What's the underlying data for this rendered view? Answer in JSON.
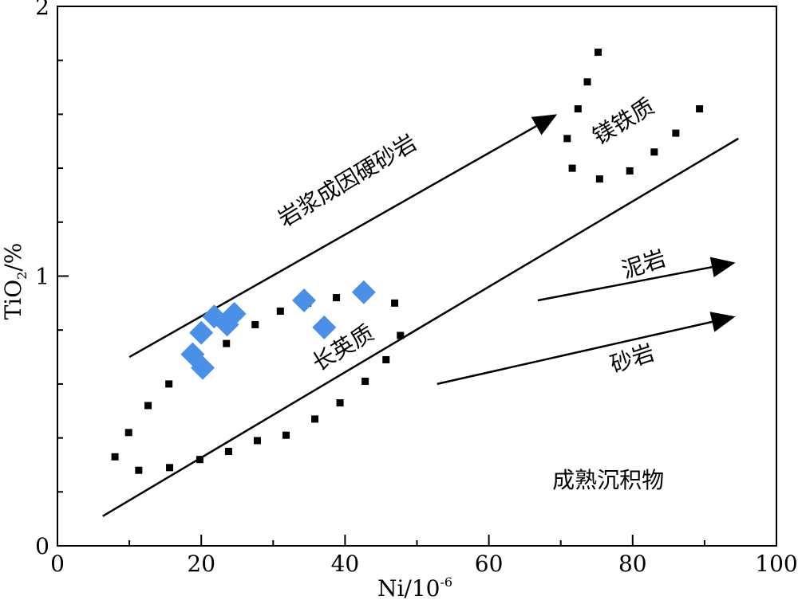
{
  "chart_data": {
    "type": "scatter",
    "title": "",
    "xlabel": "Ni/10",
    "xlabel_sup": "-6",
    "ylabel": "TiO",
    "ylabel_sub": "2",
    "ylabel_suffix": "/%",
    "xlim": [
      0,
      100
    ],
    "ylim": [
      0,
      2
    ],
    "x_ticks": [
      0,
      20,
      40,
      60,
      80,
      100
    ],
    "x_tick_labels": [
      "0",
      "20",
      "40",
      "60",
      "80",
      "100"
    ],
    "x_minor_ticks": [
      10,
      30,
      50,
      70,
      90
    ],
    "y_ticks": [
      0,
      1,
      2
    ],
    "y_tick_labels": [
      "0",
      "1",
      "2"
    ],
    "y_minor_ticks": [
      0.2,
      0.4,
      0.6,
      0.8,
      1.2,
      1.4,
      1.6,
      1.8
    ],
    "grid": false,
    "colors": {
      "points": "#4a90e8",
      "lines": "#000000"
    },
    "series": [
      {
        "values": [
          {
            "x": 18.8,
            "y": 0.71
          },
          {
            "x": 20.2,
            "y": 0.66
          },
          {
            "x": 20.0,
            "y": 0.79
          },
          {
            "x": 21.8,
            "y": 0.85
          },
          {
            "x": 23.6,
            "y": 0.82
          },
          {
            "x": 24.6,
            "y": 0.86
          },
          {
            "x": 34.3,
            "y": 0.91
          },
          {
            "x": 37.1,
            "y": 0.81
          },
          {
            "x": 42.6,
            "y": 0.94
          }
        ]
      }
    ],
    "lines": [
      {
        "x": [
          6.3,
          94.7
        ],
        "y": [
          0.11,
          1.51
        ]
      }
    ],
    "arrows": [
      {
        "x": [
          10,
          69.5
        ],
        "y": [
          0.7,
          1.6
        ]
      },
      {
        "x": [
          66.8,
          94.3
        ],
        "y": [
          0.91,
          1.05
        ]
      },
      {
        "x": [
          52.8,
          94.3
        ],
        "y": [
          0.6,
          0.85
        ]
      }
    ],
    "dotted_boundaries": [
      {
        "points": [
          [
            8,
            0.33
          ],
          [
            9.9,
            0.42
          ],
          [
            12.6,
            0.52
          ],
          [
            15.5,
            0.6
          ],
          [
            20.5,
            0.67
          ],
          [
            23.5,
            0.75
          ],
          [
            27.5,
            0.82
          ],
          [
            31.0,
            0.87
          ],
          [
            34.8,
            0.9
          ],
          [
            38.8,
            0.92
          ],
          [
            42.5,
            0.93
          ],
          [
            46.9,
            0.9
          ]
        ]
      },
      {
        "points": [
          [
            11.3,
            0.28
          ],
          [
            15.6,
            0.29
          ],
          [
            19.8,
            0.32
          ],
          [
            23.8,
            0.35
          ],
          [
            27.8,
            0.39
          ],
          [
            31.8,
            0.41
          ],
          [
            35.8,
            0.47
          ],
          [
            39.3,
            0.53
          ],
          [
            42.8,
            0.61
          ],
          [
            45.7,
            0.69
          ],
          [
            47.7,
            0.78
          ]
        ]
      },
      {
        "points": [
          [
            75.2,
            1.83
          ],
          [
            73.7,
            1.72
          ],
          [
            72.4,
            1.62
          ],
          [
            70.9,
            1.51
          ],
          [
            71.6,
            1.4
          ],
          [
            75.4,
            1.36
          ],
          [
            79.6,
            1.39
          ],
          [
            83.0,
            1.46
          ],
          [
            86.0,
            1.53
          ],
          [
            89.3,
            1.62
          ]
        ]
      }
    ],
    "annotations": [
      {
        "text": "岩浆成因硬砂岩",
        "x": 40.4,
        "y": 1.35,
        "angle": -31
      },
      {
        "text": "镁铁质",
        "x": 78.8,
        "y": 1.57,
        "angle": -31
      },
      {
        "text": "长英质",
        "x": 39.8,
        "y": 0.73,
        "angle": -31
      },
      {
        "text": "泥岩",
        "x": 81.6,
        "y": 1.04,
        "angle": -18
      },
      {
        "text": "砂岩",
        "x": 80.0,
        "y": 0.69,
        "angle": -18
      },
      {
        "text": "成熟沉积物",
        "x": 76.6,
        "y": 0.24,
        "angle": 0
      }
    ]
  }
}
